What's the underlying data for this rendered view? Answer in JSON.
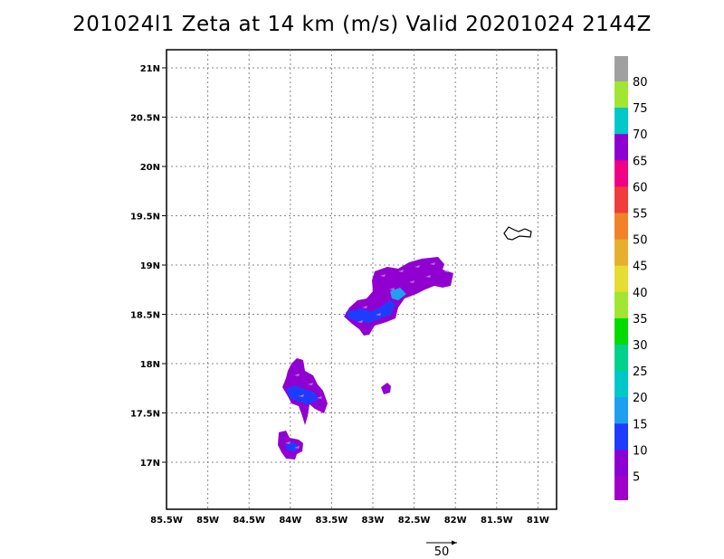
{
  "title": "201024l1 Zeta at 14 km (m/s) Valid 20201024 2144Z",
  "map": {
    "lon_labels": [
      "85.5W",
      "85W",
      "84.5W",
      "84W",
      "83.5W",
      "83W",
      "82.5W",
      "82W",
      "81.5W",
      "81W"
    ],
    "lat_labels": [
      "21N",
      "20.5N",
      "20N",
      "19.5N",
      "19N",
      "18.5N",
      "18N",
      "17.5N",
      "17N"
    ],
    "grid": true
  },
  "colorbar": {
    "labels": [
      "80",
      "75",
      "70",
      "65",
      "60",
      "55",
      "50",
      "45",
      "40",
      "35",
      "30",
      "25",
      "20",
      "15",
      "10",
      "5"
    ],
    "colors": [
      "#a0a0a0",
      "#a0e632",
      "#00c8c8",
      "#8c00d2",
      "#f00082",
      "#f03c3c",
      "#f08228",
      "#e6af2d",
      "#e6dc32",
      "#a0e632",
      "#00dc00",
      "#00d28c",
      "#00c8c8",
      "#1ea0f0",
      "#1e3cff",
      "#8c00d2",
      "#a000c8"
    ]
  },
  "vector_reference": {
    "label": "50"
  },
  "data_colors": {
    "primary": "#9000d0",
    "secondary": "#1e3cff",
    "accent": "#1ea0f0"
  }
}
